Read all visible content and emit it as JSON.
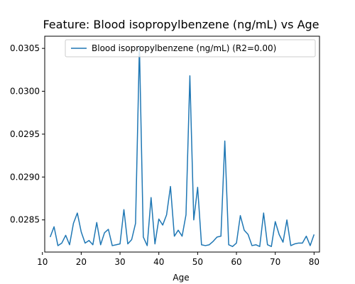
{
  "chart_data": {
    "type": "line",
    "title": "Feature: Blood isopropylbenzene (ng/mL) vs Age",
    "xlabel": "Age",
    "ylabel": "",
    "xlim": [
      10.6,
      81.4
    ],
    "ylim": [
      0.028125,
      0.030642
    ],
    "xticks": [
      10,
      20,
      30,
      40,
      50,
      60,
      70,
      80
    ],
    "yticks": [
      0.0285,
      0.029,
      0.0295,
      0.03,
      0.0305
    ],
    "ytick_labels": [
      "0.0285",
      "0.0290",
      "0.0295",
      "0.0300",
      "0.0305"
    ],
    "grid": false,
    "legend_position": "top-right",
    "series": [
      {
        "name": "Blood isopropylbenzene (ng/mL) (R2=0.00)",
        "color": "#1f77b4",
        "x": [
          12,
          13,
          14,
          15,
          16,
          17,
          18,
          19,
          20,
          21,
          22,
          23,
          24,
          25,
          26,
          27,
          28,
          29,
          30,
          31,
          32,
          33,
          34,
          35,
          36,
          37,
          38,
          39,
          40,
          41,
          42,
          43,
          44,
          45,
          46,
          47,
          48,
          49,
          50,
          51,
          52,
          53,
          54,
          55,
          56,
          57,
          58,
          59,
          60,
          61,
          62,
          63,
          64,
          65,
          66,
          67,
          68,
          69,
          70,
          71,
          72,
          73,
          74,
          75,
          76,
          77,
          78,
          79,
          80
        ],
        "y": [
          0.0283,
          0.02842,
          0.0282,
          0.02823,
          0.02832,
          0.02821,
          0.02846,
          0.02858,
          0.02836,
          0.02823,
          0.02826,
          0.02821,
          0.02847,
          0.02821,
          0.02835,
          0.02839,
          0.0282,
          0.02821,
          0.02822,
          0.02862,
          0.02822,
          0.02827,
          0.02846,
          0.03053,
          0.0283,
          0.0282,
          0.02876,
          0.02822,
          0.02851,
          0.02844,
          0.02856,
          0.02889,
          0.02831,
          0.02838,
          0.02831,
          0.02856,
          0.03018,
          0.0285,
          0.02888,
          0.02821,
          0.0282,
          0.02821,
          0.02825,
          0.0283,
          0.02831,
          0.02942,
          0.02821,
          0.02819,
          0.02823,
          0.02855,
          0.02838,
          0.02833,
          0.0282,
          0.02821,
          0.02819,
          0.02858,
          0.02821,
          0.02819,
          0.02848,
          0.02833,
          0.02824,
          0.0285,
          0.0282,
          0.02822,
          0.02823,
          0.02823,
          0.02831,
          0.0282,
          0.02833
        ]
      }
    ]
  }
}
